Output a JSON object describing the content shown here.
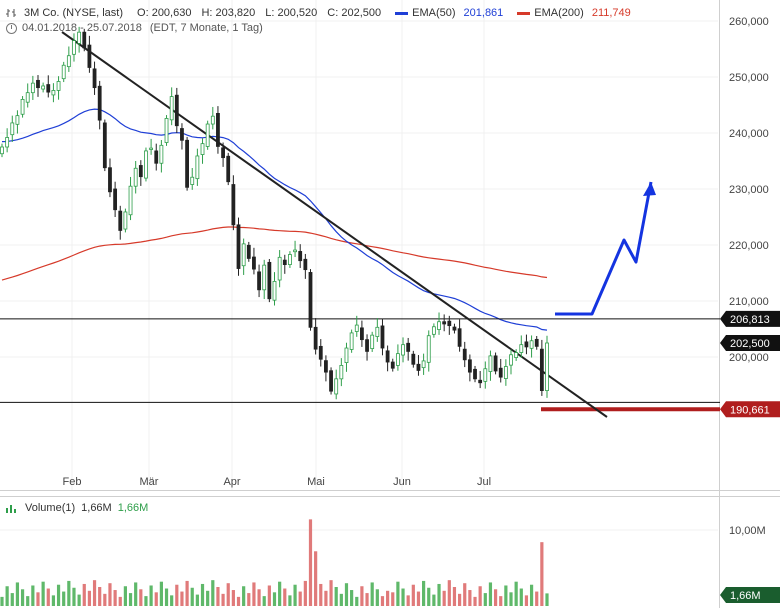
{
  "header": {
    "symbol_line": "3M Co. (NYSE, last)",
    "open": "O: 200,630",
    "high": "H: 203,820",
    "low": "L: 200,520",
    "close": "C: 202,500",
    "ema50_label": "EMA(50)",
    "ema50_value": "201,861",
    "ema200_label": "EMA(200)",
    "ema200_value": "211,749",
    "date_range": "04.01.2018 - 25.07.2018",
    "period_info": "(EDT, 7 Monate, 1 Tag)"
  },
  "volume_header": {
    "label": "Volume(1)",
    "value1": "1,66M",
    "value2": "1,66M"
  },
  "colors": {
    "up": "#2e9e4a",
    "down": "#222222",
    "ema50": "#1f3fd6",
    "ema200": "#d63a2a",
    "arrow": "#1434e0",
    "support_marker": "#b01e1e",
    "vol_up": "#5fb86a",
    "vol_down": "#e07a7a"
  },
  "chart_data": {
    "type": "candlestick",
    "title": "3M Co. (NYSE, last)",
    "x_tick_labels": [
      "Feb",
      "Mär",
      "Apr",
      "Mai",
      "Jun",
      "Jul"
    ],
    "y_tick_labels": [
      "260,000",
      "250,000",
      "240,000",
      "230,000",
      "220,000",
      "210,000",
      "200,000"
    ],
    "ylim": [
      184,
      263
    ],
    "price_tags": [
      {
        "label": "206,813",
        "value": 206.813,
        "style": "dark"
      },
      {
        "label": "202,500",
        "value": 202.5,
        "style": "dark"
      },
      {
        "label": "190,661",
        "value": 190.661,
        "style": "red"
      }
    ],
    "support_line_value": 191.9,
    "resistance_line_value": 206.813,
    "candles_close": [
      237.5,
      239.2,
      241.8,
      243.1,
      246.0,
      247.2,
      248.9,
      248.1,
      248.4,
      247.3,
      247.6,
      249.2,
      252.1,
      253.8,
      256.5,
      258.0,
      255.2,
      251.7,
      248.1,
      242.3,
      233.8,
      229.5,
      226.3,
      222.6,
      225.9,
      230.5,
      233.7,
      232.2,
      236.8,
      237.3,
      234.6,
      237.8,
      242.6,
      246.5,
      241.3,
      238.7,
      230.3,
      232.1,
      235.9,
      238.1,
      241.6,
      243.0,
      237.6,
      235.6,
      231.3,
      223.6,
      215.8,
      220.2,
      217.6,
      215.7,
      212.0,
      216.4,
      210.4,
      213.5,
      217.8,
      216.5,
      218.3,
      219.1,
      217.2,
      215.6,
      205.3,
      201.4,
      199.6,
      197.3,
      193.9,
      196.1,
      198.5,
      201.6,
      204.3,
      205.7,
      203.1,
      201.0,
      203.9,
      205.3,
      201.6,
      199.1,
      198.0,
      200.6,
      202.2,
      201.0,
      198.7,
      197.6,
      199.3,
      203.8,
      205.4,
      206.3,
      205.9,
      205.6,
      204.8,
      201.9,
      199.5,
      197.3,
      196.1,
      195.4,
      197.9,
      200.2,
      197.5,
      196.4,
      198.3,
      200.4,
      200.8,
      202.2,
      201.8,
      202.9,
      201.9,
      194.0,
      202.5
    ],
    "ema50_start": 238.5,
    "ema200_start": 213.5,
    "annotation_arrow_points": [
      [
        555,
        314
      ],
      [
        592,
        314
      ],
      [
        624,
        240
      ],
      [
        636,
        262
      ],
      [
        651,
        182
      ]
    ],
    "volume_ylabel": "10,00M",
    "volume_last_label": "1,66M"
  }
}
